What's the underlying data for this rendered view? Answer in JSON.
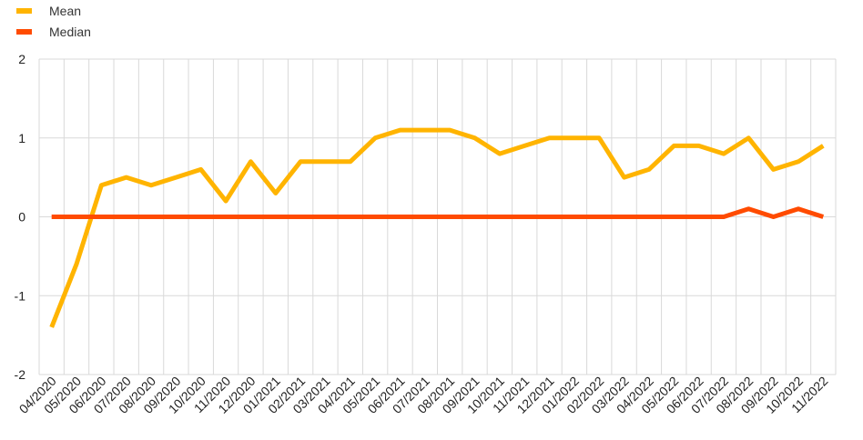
{
  "colors": {
    "mean": "#FFB400",
    "median": "#FF4B00",
    "grid": "#D9D9D9"
  },
  "legend": {
    "mean_label": "Mean",
    "median_label": "Median",
    "position": "top-left"
  },
  "chart_data": {
    "type": "line",
    "title": "",
    "xlabel": "",
    "ylabel": "",
    "ylim": [
      -2,
      2
    ],
    "yticks": [
      "2",
      "1",
      "0",
      "-1",
      "-2"
    ],
    "ytick_values": [
      2,
      1,
      0,
      -1,
      -2
    ],
    "grid": true,
    "categories": [
      "04/2020",
      "05/2020",
      "06/2020",
      "07/2020",
      "08/2020",
      "09/2020",
      "10/2020",
      "11/2020",
      "12/2020",
      "01/2021",
      "02/2021",
      "03/2021",
      "04/2021",
      "05/2021",
      "06/2021",
      "07/2021",
      "08/2021",
      "09/2021",
      "10/2021",
      "11/2021",
      "12/2021",
      "01/2022",
      "02/2022",
      "03/2022",
      "04/2022",
      "05/2022",
      "06/2022",
      "07/2022",
      "08/2022",
      "09/2022",
      "10/2022",
      "11/2022"
    ],
    "series": [
      {
        "name": "Mean",
        "values": [
          -1.4,
          -0.6,
          0.4,
          0.5,
          0.4,
          0.5,
          0.6,
          0.2,
          0.7,
          0.3,
          0.7,
          0.7,
          0.7,
          1.0,
          1.1,
          1.1,
          1.1,
          1.0,
          0.8,
          0.9,
          1.0,
          1.0,
          1.0,
          0.5,
          0.6,
          0.9,
          0.9,
          0.8,
          1.0,
          0.6,
          0.7,
          0.9
        ]
      },
      {
        "name": "Median",
        "values": [
          0,
          0,
          0,
          0,
          0,
          0,
          0,
          0,
          0,
          0,
          0,
          0,
          0,
          0,
          0,
          0,
          0,
          0,
          0,
          0,
          0,
          0,
          0,
          0,
          0,
          0,
          0,
          0,
          0.1,
          0,
          0.1,
          0
        ]
      }
    ]
  }
}
